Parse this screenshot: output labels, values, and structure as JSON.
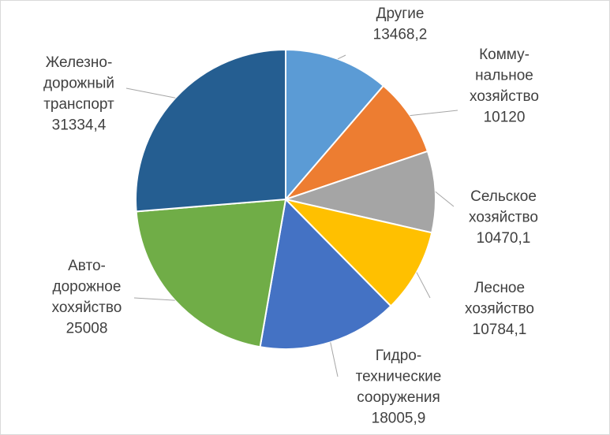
{
  "chart_data": {
    "type": "pie",
    "categories": [
      [
        "Другие"
      ],
      [
        "Комму-",
        "нальное",
        "хозяйство"
      ],
      [
        "Сельское",
        "хозяйство"
      ],
      [
        "Лесное",
        "хозяйство"
      ],
      [
        "Гидро-",
        "технические",
        "сооружения"
      ],
      [
        "Авто-",
        "дорожное",
        "хохяйство"
      ],
      [
        "Железно-",
        "дорожный",
        "транспорт"
      ]
    ],
    "values": [
      13468.2,
      10120,
      10470.1,
      10784.1,
      18005.9,
      25008,
      31334.4
    ],
    "value_labels": [
      "13468,2",
      "10120",
      "10470,1",
      "10784,1",
      "18005,9",
      "25008",
      "31334,4"
    ],
    "colors": [
      "#5b9bd5",
      "#ed7d31",
      "#a5a5a5",
      "#ffc000",
      "#4472c4",
      "#70ad47",
      "#255e91"
    ]
  }
}
